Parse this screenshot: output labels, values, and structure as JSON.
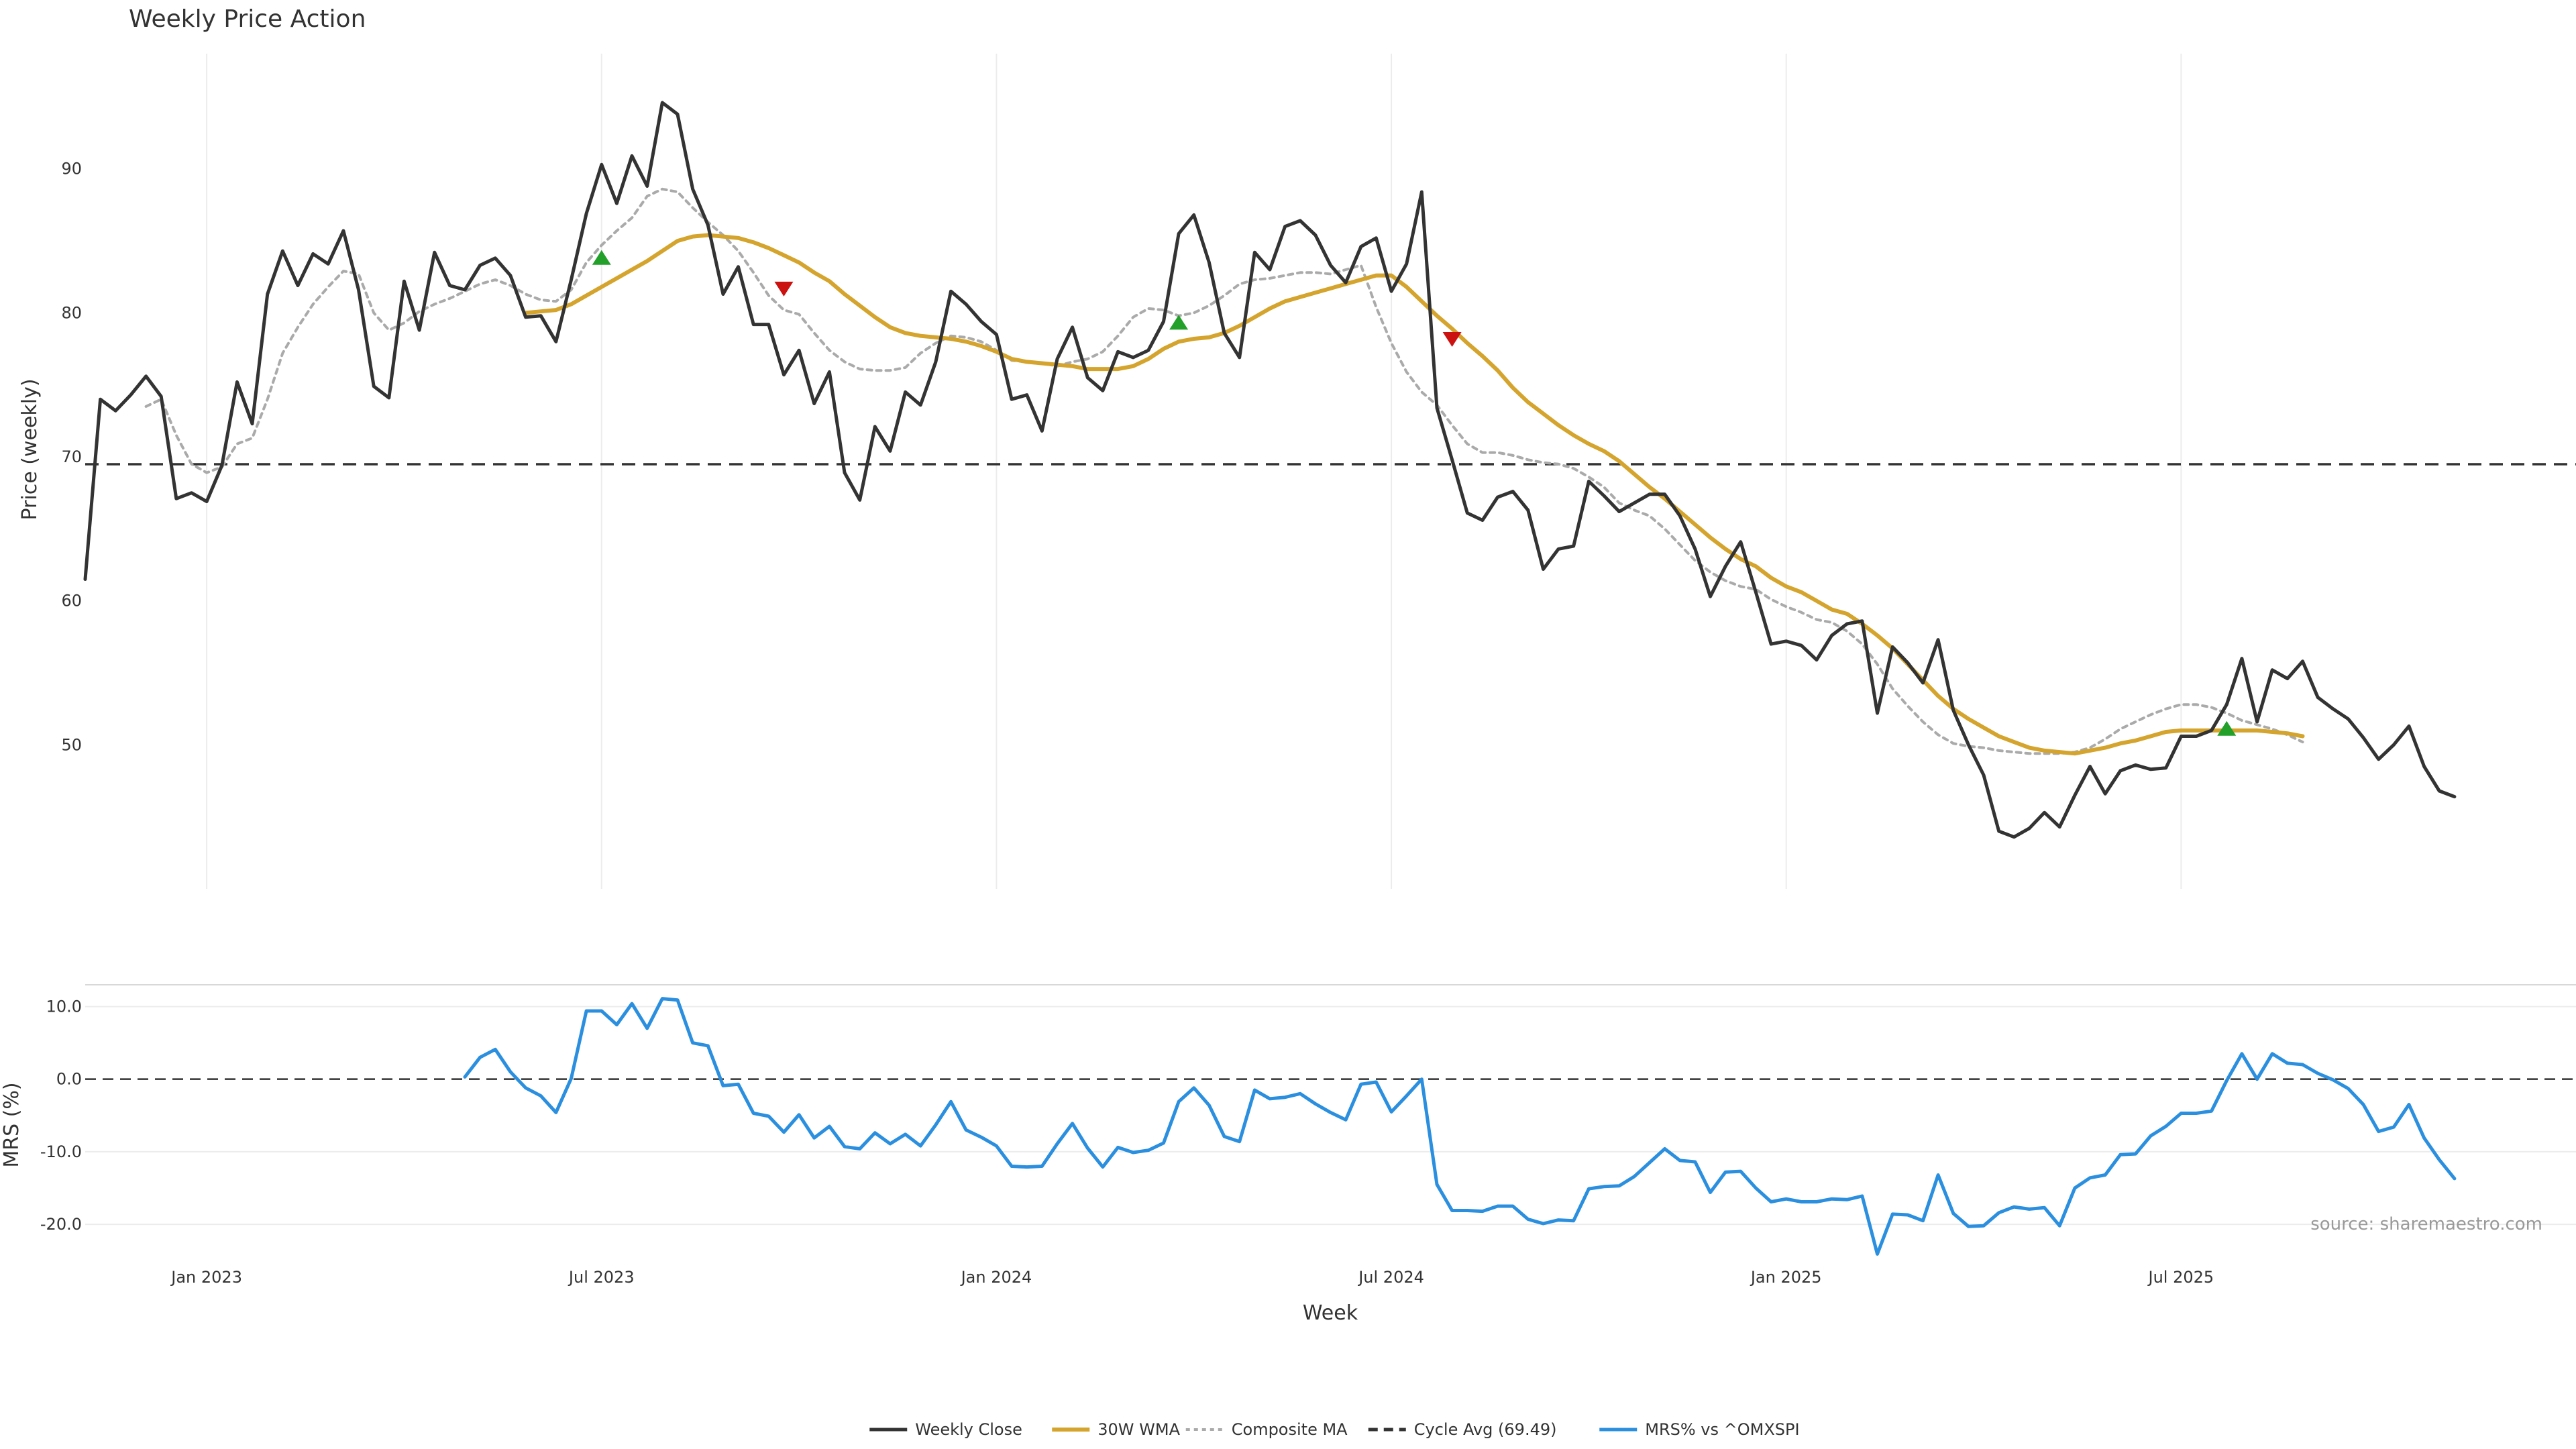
{
  "chart_data": {
    "type": "line",
    "title": "Weekly Price Action",
    "source": "source: sharemaestro.com",
    "xlabel": "Week",
    "x_ticks": [
      {
        "week": 8,
        "label": "Jan 2023"
      },
      {
        "week": 34,
        "label": "Jul 2023"
      },
      {
        "week": 60,
        "label": "Jan 2024"
      },
      {
        "week": 86,
        "label": "Jul 2024"
      },
      {
        "week": 112,
        "label": "Jan 2025"
      },
      {
        "week": 138,
        "label": "Jul 2025"
      }
    ],
    "price_panel": {
      "ylabel": "Price (weekly)",
      "ylim": [
        40,
        98
      ],
      "yticks": [
        {
          "value": 50,
          "label": "50"
        },
        {
          "value": 60,
          "label": "60"
        },
        {
          "value": 70,
          "label": "70"
        },
        {
          "value": 80,
          "label": "80"
        },
        {
          "value": 90,
          "label": "90"
        }
      ],
      "series": [
        {
          "name": "Weekly Close",
          "color": "#333333",
          "start_week": 0,
          "values": [
            61.5,
            74.0,
            73.2,
            74.3,
            75.6,
            74.2,
            67.1,
            67.5,
            66.9,
            69.4,
            75.2,
            72.3,
            81.3,
            84.3,
            81.9,
            84.1,
            83.4,
            85.7,
            81.6,
            74.9,
            74.1,
            82.2,
            78.8,
            84.2,
            81.9,
            81.6,
            83.3,
            83.8,
            82.6,
            79.7,
            79.8,
            78.0,
            82.3,
            86.9,
            90.3,
            87.6,
            90.9,
            88.8,
            94.6,
            93.8,
            88.6,
            86.1,
            81.3,
            83.2,
            79.2,
            79.2,
            75.7,
            77.4,
            73.7,
            75.9,
            68.9,
            67.0,
            72.1,
            70.4,
            74.5,
            73.6,
            76.6,
            81.5,
            80.6,
            79.4,
            78.5,
            74.0,
            74.3,
            71.8,
            76.8,
            79.0,
            75.5,
            74.6,
            77.3,
            76.9,
            77.4,
            79.4,
            85.5,
            86.8,
            83.5,
            78.6,
            76.9,
            84.2,
            83.0,
            86.0,
            86.4,
            85.4,
            83.3,
            82.1,
            84.6,
            85.2,
            81.5,
            83.4,
            88.4,
            73.4,
            69.8,
            66.1,
            65.6,
            67.2,
            67.6,
            66.3,
            62.2,
            63.6,
            63.8,
            68.3,
            67.3,
            66.2,
            66.8,
            67.4,
            67.4,
            65.9,
            63.6,
            60.3,
            62.4,
            64.1,
            60.6,
            57.0,
            57.2,
            56.9,
            55.9,
            57.6,
            58.4,
            58.6,
            52.2,
            56.8,
            55.7,
            54.3,
            57.3,
            52.4,
            50.0,
            47.9,
            44.0,
            43.6,
            44.2,
            45.3,
            44.3,
            46.5,
            48.5,
            46.6,
            48.2,
            48.6,
            48.3,
            48.4,
            50.6,
            50.6,
            51.0,
            52.8,
            56.0,
            51.6,
            55.2,
            54.6,
            55.8,
            53.3,
            52.5,
            51.8,
            50.5,
            49.0,
            50.0,
            51.3,
            48.5,
            46.8,
            46.4
          ]
        },
        {
          "name": "Composite MA",
          "color": "#aaaaaa",
          "start_week": 4,
          "values": [
            73.5,
            74.0,
            71.5,
            69.5,
            68.9,
            69.3,
            70.9,
            71.3,
            74.0,
            77.2,
            79.0,
            80.6,
            81.8,
            82.9,
            82.7,
            80.0,
            78.8,
            79.3,
            80.1,
            80.6,
            81.0,
            81.5,
            82.0,
            82.3,
            81.9,
            81.3,
            80.9,
            80.8,
            81.6,
            83.5,
            84.7,
            85.7,
            86.6,
            88.1,
            88.6,
            88.4,
            87.3,
            86.3,
            85.4,
            84.3,
            82.8,
            81.2,
            80.2,
            79.9,
            78.6,
            77.4,
            76.6,
            76.1,
            76.0,
            76.0,
            76.2,
            77.2,
            77.9,
            78.4,
            78.3,
            78.0,
            77.4,
            76.7,
            76.6,
            76.5,
            76.3,
            76.6,
            76.8,
            77.3,
            78.4,
            79.7,
            80.3,
            80.2,
            79.8,
            80.0,
            80.5,
            81.2,
            82.0,
            82.3,
            82.4,
            82.6,
            82.8,
            82.8,
            82.7,
            83.0,
            83.3,
            80.4,
            77.9,
            75.9,
            74.5,
            73.6,
            72.2,
            70.9,
            70.3,
            70.3,
            70.1,
            69.8,
            69.6,
            69.5,
            69.2,
            68.6,
            67.9,
            66.8,
            66.3,
            65.9,
            65.0,
            63.9,
            62.8,
            62.0,
            61.4,
            61.0,
            60.8,
            60.1,
            59.6,
            59.2,
            58.7,
            58.5,
            57.9,
            57.0,
            55.6,
            53.9,
            52.7,
            51.6,
            50.7,
            50.1,
            49.9,
            49.8,
            49.6,
            49.5,
            49.4,
            49.4,
            49.4,
            49.5,
            49.8,
            50.4,
            51.1,
            51.6,
            52.1,
            52.5,
            52.8,
            52.8,
            52.6,
            52.2,
            51.7,
            51.4,
            51.1,
            50.7,
            50.2
          ]
        },
        {
          "name": "30W WMA",
          "color": "#d4a42c",
          "start_week": 29,
          "values": [
            80.0,
            80.1,
            80.2,
            80.6,
            81.2,
            81.8,
            82.4,
            83.0,
            83.6,
            84.3,
            85.0,
            85.3,
            85.4,
            85.3,
            85.2,
            84.9,
            84.5,
            84.0,
            83.5,
            82.8,
            82.2,
            81.3,
            80.5,
            79.7,
            79.0,
            78.6,
            78.4,
            78.3,
            78.2,
            78.0,
            77.7,
            77.3,
            76.8,
            76.6,
            76.5,
            76.4,
            76.3,
            76.1,
            76.1,
            76.1,
            76.3,
            76.8,
            77.5,
            78.0,
            78.2,
            78.3,
            78.6,
            79.1,
            79.7,
            80.3,
            80.8,
            81.1,
            81.4,
            81.7,
            82.0,
            82.3,
            82.6,
            82.6,
            81.8,
            80.8,
            79.8,
            78.9,
            77.9,
            77.0,
            76.0,
            74.8,
            73.8,
            73.0,
            72.2,
            71.5,
            70.9,
            70.4,
            69.7,
            68.8,
            67.9,
            67.1,
            66.2,
            65.3,
            64.4,
            63.6,
            62.9,
            62.4,
            61.6,
            61.0,
            60.6,
            60.0,
            59.4,
            59.1,
            58.4,
            57.6,
            56.7,
            55.6,
            54.5,
            53.4,
            52.5,
            51.8,
            51.2,
            50.6,
            50.2,
            49.8,
            49.6,
            49.5,
            49.4,
            49.6,
            49.8,
            50.1,
            50.3,
            50.6,
            50.9,
            51.0,
            51.0,
            51.0,
            51.0,
            51.0,
            51.0,
            50.9,
            50.8,
            50.6
          ]
        }
      ],
      "cycle_avg": {
        "name": "Cycle Avg (69.49)",
        "value": 69.49,
        "color": "#333333"
      },
      "signals": [
        {
          "type": "buy",
          "week": 34,
          "value": 83.8
        },
        {
          "type": "sell",
          "week": 46,
          "value": 81.7
        },
        {
          "type": "buy",
          "week": 72,
          "value": 79.3
        },
        {
          "type": "sell",
          "week": 90,
          "value": 78.2
        },
        {
          "type": "buy",
          "week": 141,
          "value": 51.1
        }
      ],
      "signal_colors": {
        "buy": "#22a02a",
        "sell": "#cc1111"
      }
    },
    "mrs_panel": {
      "ylabel": "MRS (%)",
      "ylim": [
        -26,
        13
      ],
      "yticks": [
        {
          "value": 10,
          "label": "10.0"
        },
        {
          "value": 0,
          "label": "0.0"
        },
        {
          "value": -10,
          "label": "-10.0"
        },
        {
          "value": -20,
          "label": "-20.0"
        }
      ],
      "zero_line": 0,
      "series": [
        {
          "name": "MRS% vs ^OMXSPI",
          "color": "#2b8fdf",
          "start_week": 25,
          "values": [
            0.3,
            3.0,
            4.1,
            1.0,
            -1.2,
            -2.3,
            -4.6,
            0.1,
            9.4,
            9.4,
            7.5,
            10.4,
            7.0,
            11.1,
            10.9,
            5.0,
            4.6,
            -0.9,
            -0.7,
            -4.7,
            -5.1,
            -7.3,
            -4.9,
            -8.1,
            -6.5,
            -9.3,
            -9.6,
            -7.4,
            -8.9,
            -7.6,
            -9.2,
            -6.3,
            -3.1,
            -7.0,
            -8.0,
            -9.2,
            -12.0,
            -12.1,
            -12.0,
            -8.9,
            -6.1,
            -9.5,
            -12.1,
            -9.4,
            -10.1,
            -9.8,
            -8.8,
            -3.1,
            -1.2,
            -3.6,
            -7.9,
            -8.6,
            -1.5,
            -2.7,
            -2.5,
            -2.0,
            -3.4,
            -4.6,
            -5.6,
            -0.7,
            -0.4,
            -4.5,
            -2.3,
            0.0,
            -14.5,
            -18.1,
            -18.1,
            -18.2,
            -17.5,
            -17.5,
            -19.3,
            -19.9,
            -19.4,
            -19.5,
            -15.1,
            -14.8,
            -14.7,
            -13.4,
            -11.5,
            -9.6,
            -11.2,
            -11.4,
            -15.6,
            -12.8,
            -12.7,
            -15.0,
            -16.9,
            -16.5,
            -16.9,
            -16.9,
            -16.5,
            -16.6,
            -16.1,
            -24.1,
            -18.6,
            -18.7,
            -19.5,
            -13.2,
            -18.5,
            -20.3,
            -20.2,
            -18.4,
            -17.6,
            -17.9,
            -17.7,
            -20.2,
            -15.0,
            -13.6,
            -13.2,
            -10.4,
            -10.3,
            -7.8,
            -6.5,
            -4.7,
            -4.7,
            -4.4,
            -0.2,
            3.5,
            0.0,
            3.5,
            2.2,
            2.0,
            0.8,
            -0.1,
            -1.3,
            -3.5,
            -7.2,
            -6.6,
            -3.5,
            -8.1,
            -11.1,
            -13.7
          ]
        }
      ]
    },
    "legend": {
      "placement": "bottom-center",
      "entries": [
        {
          "label": "Weekly Close",
          "style": "solid",
          "color": "#333333"
        },
        {
          "label": "30W WMA",
          "style": "thick",
          "color": "#d4a42c"
        },
        {
          "label": "Composite MA",
          "style": "dotted",
          "color": "#aaaaaa"
        },
        {
          "label": "Cycle Avg (69.49)",
          "style": "dashed",
          "color": "#333333"
        },
        {
          "label": "MRS% vs ^OMXSPI",
          "style": "solid",
          "color": "#2b8fdf"
        }
      ]
    }
  }
}
